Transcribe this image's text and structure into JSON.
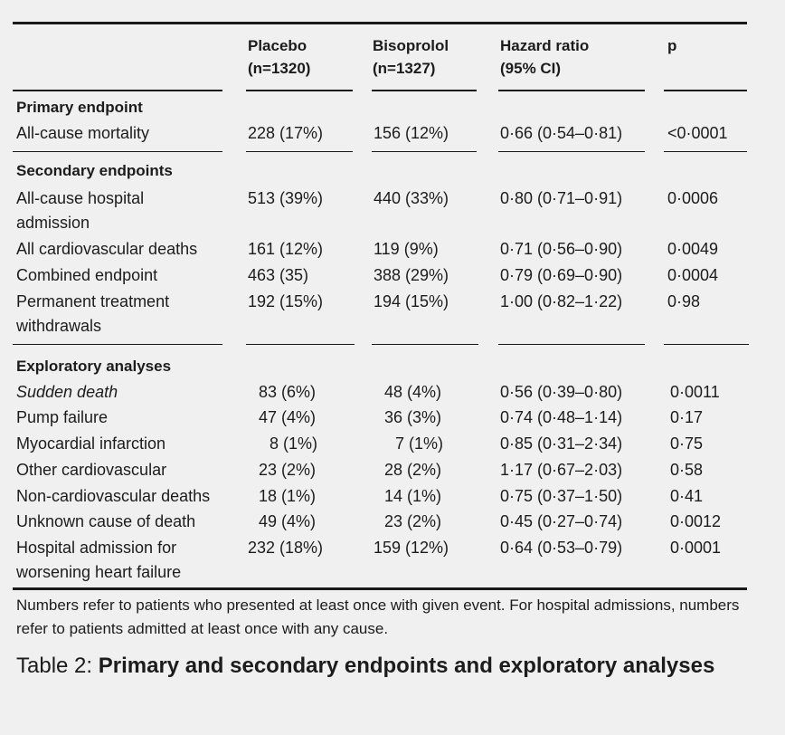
{
  "header": {
    "col1_line1": "Placebo",
    "col1_line2": "(n=1320)",
    "col2_line1": "Bisoprolol",
    "col2_line2": "(n=1327)",
    "col3_line1": "Hazard ratio",
    "col3_line2": "(95% CI)",
    "col4": "p"
  },
  "sections": {
    "primary": "Primary endpoint",
    "secondary": "Secondary endpoints",
    "exploratory": "Exploratory analyses"
  },
  "rows": {
    "r1": {
      "label": "All-cause mortality",
      "placebo": "228 (17%)",
      "bisoprolol": "156 (12%)",
      "hr": "0·66 (0·54–0·81)",
      "p": "<0·0001"
    },
    "r2": {
      "label1": "All-cause hospital",
      "label2": "admission",
      "placebo": "513 (39%)",
      "bisoprolol": "440 (33%)",
      "hr": "0·80 (0·71–0·91)",
      "p": "0·0006"
    },
    "r3": {
      "label": "All cardiovascular deaths",
      "placebo": "161 (12%)",
      "bisoprolol": "119 (9%)",
      "hr": "0·71 (0·56–0·90)",
      "p": "0·0049"
    },
    "r4": {
      "label": "Combined endpoint",
      "placebo": "463 (35)",
      "bisoprolol": "388 (29%)",
      "hr": "0·79 (0·69–0·90)",
      "p": "0·0004"
    },
    "r5": {
      "label1": "Permanent treatment",
      "label2": "withdrawals",
      "placebo": "192 (15%)",
      "bisoprolol": "194 (15%)",
      "hr": "1·00 (0·82–1·22)",
      "p": "0·98"
    },
    "r6": {
      "label": "Sudden death",
      "placebo": "83 (6%)",
      "bisoprolol": "48 (4%)",
      "hr": "0·56 (0·39–0·80)",
      "p": "0·0011"
    },
    "r7": {
      "label": "Pump failure",
      "placebo": "47 (4%)",
      "bisoprolol": "36 (3%)",
      "hr": "0·74 (0·48–1·14)",
      "p": "0·17"
    },
    "r8": {
      "label": "Myocardial infarction",
      "placebo": "8 (1%)",
      "bisoprolol": "7 (1%)",
      "hr": "0·85 (0·31–2·34)",
      "p": "0·75"
    },
    "r9": {
      "label": "Other cardiovascular",
      "placebo": "23 (2%)",
      "bisoprolol": "28 (2%)",
      "hr": "1·17 (0·67–2·03)",
      "p": "0·58"
    },
    "r10": {
      "label": "Non-cardiovascular deaths",
      "placebo": "18 (1%)",
      "bisoprolol": "14 (1%)",
      "hr": "0·75 (0·37–1·50)",
      "p": "0·41"
    },
    "r11": {
      "label": "Unknown cause of death",
      "placebo": "49 (4%)",
      "bisoprolol": "23 (2%)",
      "hr": "0·45 (0·27–0·74)",
      "p": "0·0012"
    },
    "r12": {
      "label1": "Hospital admission for",
      "label2": "worsening heart failure",
      "placebo": "232 (18%)",
      "bisoprolol": "159 (12%)",
      "hr": "0·64 (0·53–0·79)",
      "p": "0·0001"
    }
  },
  "footnote": "Numbers refer to patients who presented at least once with given event. For hospital admissions, numbers refer to patients admitted at least once with any cause.",
  "caption": {
    "prefix": "Table 2: ",
    "title": "Primary and secondary endpoints and exploratory analyses"
  }
}
